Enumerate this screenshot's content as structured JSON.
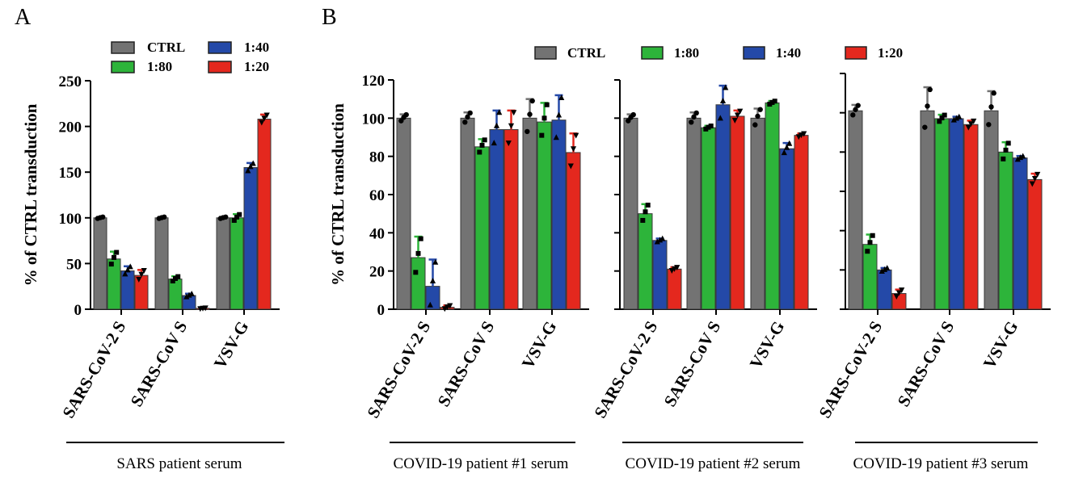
{
  "panel_labels": [
    "A",
    "B"
  ],
  "colors": {
    "CTRL": "#737373",
    "1:80": "#2db43a",
    "1:40": "#2449a8",
    "1:20": "#e4281e"
  },
  "legend": {
    "A": [
      "CTRL",
      "1:80",
      "1:40",
      "1:20"
    ],
    "B": [
      "CTRL",
      "1:80",
      "1:40",
      "1:20"
    ]
  },
  "chart_data": [
    {
      "type": "bar",
      "panel": "A",
      "ylabel": "% of CTRL transduction",
      "ylim": [
        0,
        250
      ],
      "yticks": [
        0,
        50,
        100,
        150,
        200,
        250
      ],
      "categories": [
        "SARS-CoV-2 S",
        "SARS-CoV S",
        "VSV-G"
      ],
      "group_label": "SARS patient serum",
      "series": [
        {
          "name": "CTRL",
          "values": [
            100,
            100,
            100
          ],
          "errors": [
            1,
            1,
            1
          ]
        },
        {
          "name": "1:80",
          "values": [
            55,
            33,
            100
          ],
          "errors": [
            8,
            3,
            4
          ]
        },
        {
          "name": "1:40",
          "values": [
            42,
            15,
            155
          ],
          "errors": [
            5,
            2,
            5
          ]
        },
        {
          "name": "1:20",
          "values": [
            37,
            1,
            208
          ],
          "errors": [
            6,
            0.5,
            5
          ]
        }
      ]
    },
    {
      "type": "bar",
      "panel": "B",
      "ylabel": "% of CTRL transduction",
      "ylim": [
        0,
        120
      ],
      "yticks": [
        0,
        20,
        40,
        60,
        80,
        100,
        120
      ],
      "categories": [
        "SARS-CoV-2 S",
        "SARS-CoV S",
        "VSV-G"
      ],
      "group_label": "COVID-19 patient #1 serum",
      "series": [
        {
          "name": "CTRL",
          "values": [
            100,
            100,
            100
          ],
          "errors": [
            2,
            3,
            10
          ]
        },
        {
          "name": "1:80",
          "values": [
            27,
            85,
            98
          ],
          "errors": [
            11,
            4,
            10
          ]
        },
        {
          "name": "1:40",
          "values": [
            12,
            94,
            99
          ],
          "errors": [
            14,
            10,
            13
          ]
        },
        {
          "name": "1:20",
          "values": [
            1,
            94,
            82
          ],
          "errors": [
            1,
            10,
            10
          ]
        }
      ]
    },
    {
      "type": "bar",
      "panel": "B",
      "ylim": [
        0,
        120
      ],
      "categories": [
        "SARS-CoV-2 S",
        "SARS-CoV S",
        "VSV-G"
      ],
      "group_label": "COVID-19  patient #2 serum",
      "series": [
        {
          "name": "CTRL",
          "values": [
            100,
            100,
            100
          ],
          "errors": [
            2,
            3,
            5
          ]
        },
        {
          "name": "1:80",
          "values": [
            50,
            95,
            108
          ],
          "errors": [
            5,
            1,
            1
          ]
        },
        {
          "name": "1:40",
          "values": [
            36,
            107,
            84
          ],
          "errors": [
            1,
            10,
            3
          ]
        },
        {
          "name": "1:20",
          "values": [
            21,
            101,
            91
          ],
          "errors": [
            1,
            3,
            1
          ]
        }
      ]
    },
    {
      "type": "bar",
      "panel": "B",
      "ylim": [
        0,
        120
      ],
      "categories": [
        "SARS-CoV-2 S",
        "SARS-CoV S",
        "VSV-G"
      ],
      "group_label": "COVID-19 patient #3 serum",
      "series": [
        {
          "name": "CTRL",
          "values": [
            101,
            101,
            101
          ],
          "errors": [
            3,
            12,
            10
          ]
        },
        {
          "name": "1:80",
          "values": [
            33,
            97,
            80
          ],
          "errors": [
            5,
            2,
            5
          ]
        },
        {
          "name": "1:40",
          "values": [
            20,
            97,
            77
          ],
          "errors": [
            1,
            1,
            1
          ]
        },
        {
          "name": "1:20",
          "values": [
            8,
            94,
            66
          ],
          "errors": [
            2,
            2,
            3
          ]
        }
      ]
    }
  ]
}
